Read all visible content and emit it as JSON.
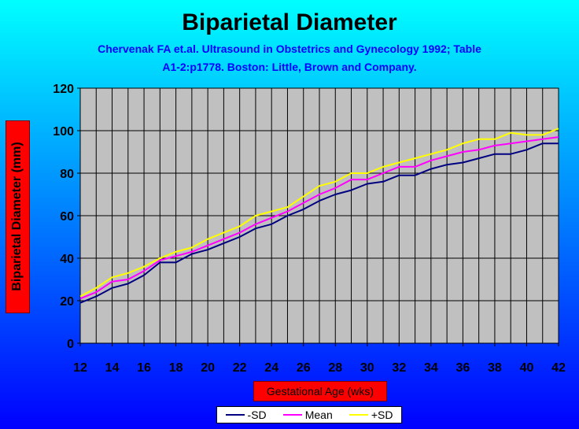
{
  "chart_data": {
    "type": "line",
    "title": "Biparietal Diameter",
    "subtitle": [
      "Chervenak FA et.al. Ultrasound in Obstetrics and Gynecology 1992; Table",
      "A1-2:p1778. Boston: Little, Brown and Company."
    ],
    "xlabel": "Gestational Age (wks)",
    "ylabel": "Biparietal Diameter  (mm)",
    "xlim": [
      12,
      42
    ],
    "ylim": [
      0,
      120
    ],
    "xticks": [
      12,
      14,
      16,
      18,
      20,
      22,
      24,
      26,
      28,
      30,
      32,
      34,
      36,
      38,
      40,
      42
    ],
    "yticks": [
      0,
      20,
      40,
      60,
      80,
      100,
      120
    ],
    "grid": true,
    "legend_position": "bottom",
    "plot_background": "#c0c0c0",
    "x": [
      12,
      13,
      14,
      15,
      16,
      17,
      18,
      19,
      20,
      21,
      22,
      23,
      24,
      25,
      26,
      27,
      28,
      29,
      30,
      31,
      32,
      33,
      34,
      35,
      36,
      37,
      38,
      39,
      40,
      41,
      42
    ],
    "series": [
      {
        "name": "-SD",
        "color": "#000080",
        "values": [
          19,
          22,
          26,
          28,
          32,
          38,
          38,
          42,
          44,
          47,
          50,
          54,
          56,
          60,
          63,
          67,
          70,
          72,
          75,
          76,
          79,
          79,
          82,
          84,
          85,
          87,
          89,
          89,
          91,
          94,
          94
        ]
      },
      {
        "name": "Mean",
        "color": "#ff00ff",
        "values": [
          21,
          24,
          29,
          30,
          34,
          39,
          41,
          43,
          46,
          49,
          52,
          56,
          59,
          62,
          66,
          70,
          73,
          77,
          77,
          80,
          83,
          83,
          86,
          88,
          90,
          91,
          93,
          94,
          95,
          96,
          97
        ]
      },
      {
        "name": "+SD",
        "color": "#ffff00",
        "values": [
          22,
          26,
          31,
          33,
          36,
          40,
          43,
          45,
          49,
          52,
          55,
          60,
          62,
          64,
          69,
          74,
          76,
          80,
          80,
          83,
          85,
          87,
          89,
          91,
          94,
          96,
          96,
          99,
          98,
          98,
          101
        ]
      }
    ]
  }
}
